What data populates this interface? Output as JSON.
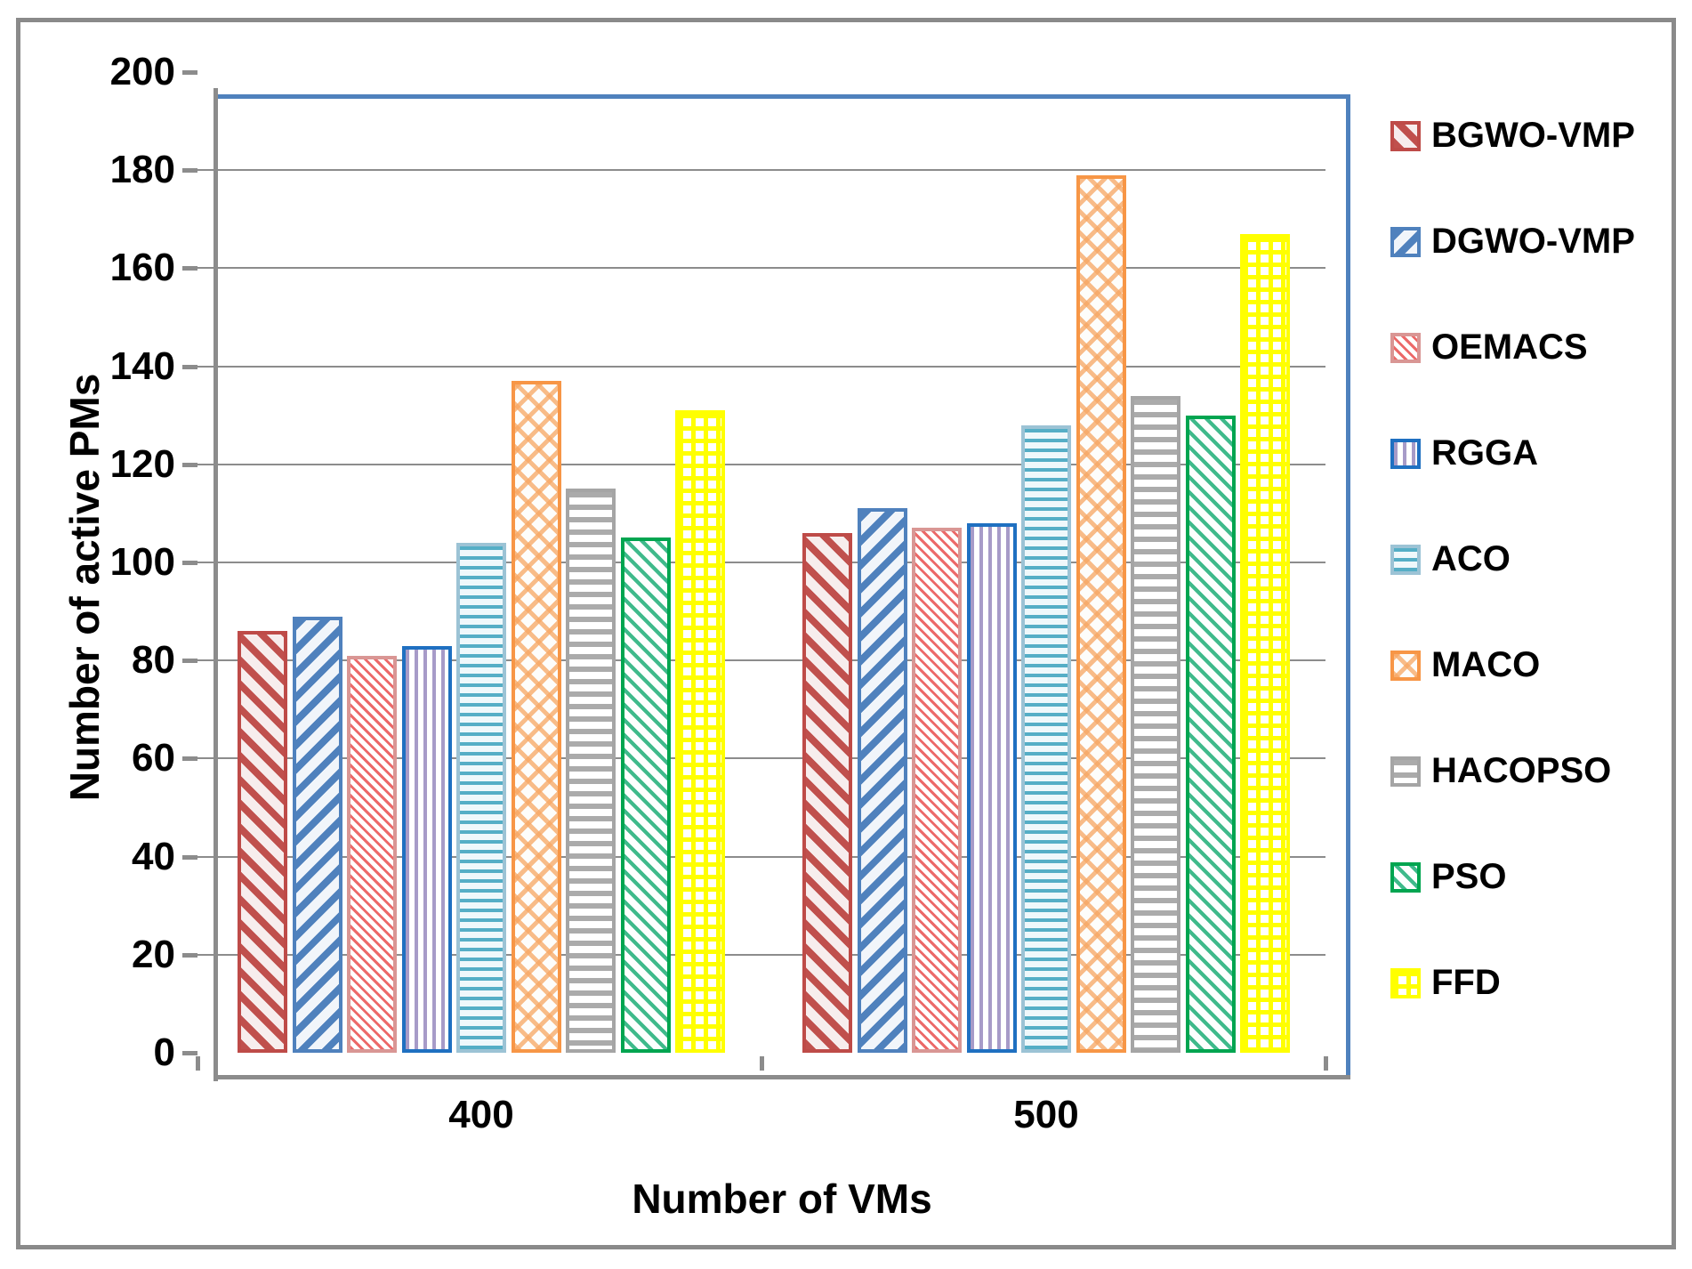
{
  "chart_data": {
    "type": "bar",
    "title": "",
    "xlabel": "Number of VMs",
    "ylabel": "Number of active PMs",
    "categories": [
      "400",
      "500"
    ],
    "series": [
      {
        "name": "BGWO-VMP",
        "values": [
          86,
          106
        ]
      },
      {
        "name": "DGWO-VMP",
        "values": [
          89,
          111
        ]
      },
      {
        "name": "OEMACS",
        "values": [
          81,
          107
        ]
      },
      {
        "name": "RGGA",
        "values": [
          83,
          108
        ]
      },
      {
        "name": "ACO",
        "values": [
          104,
          128
        ]
      },
      {
        "name": "MACO",
        "values": [
          137,
          179
        ]
      },
      {
        "name": "HACOPSO",
        "values": [
          115,
          134
        ]
      },
      {
        "name": "PSO",
        "values": [
          105,
          130
        ]
      },
      {
        "name": "FFD",
        "values": [
          131,
          167
        ]
      }
    ],
    "ylim": [
      0,
      200
    ],
    "yticks": [
      0,
      20,
      40,
      60,
      80,
      100,
      120,
      140,
      160,
      180,
      200
    ],
    "grid": true,
    "legend_position": "right",
    "series_colors": {
      "BGWO-VMP": "#C0504D",
      "DGWO-VMP": "#4F81BD",
      "OEMACS": "#D99694",
      "RGGA": "#1F70C1",
      "ACO": "#4BACC6",
      "MACO": "#F79646",
      "HACOPSO": "#A6A6A6",
      "PSO": "#00A550",
      "FFD": "#FFFF00"
    },
    "plot_border_color": "#4F81BD",
    "axis_color": "#8C8C8C"
  }
}
